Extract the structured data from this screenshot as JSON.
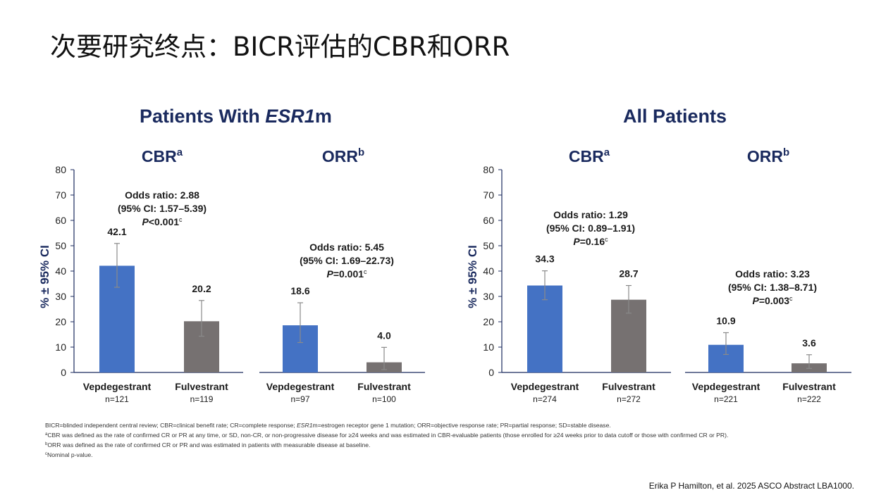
{
  "slide": {
    "title": "次要研究终点：BICR评估的CBR和ORR",
    "citation": "Erika P Hamilton, et al. 2025 ASCO Abstract LBA1000."
  },
  "groups": [
    {
      "title_prefix": "Patients With ",
      "title_italic": "ESR1",
      "title_suffix": "m"
    },
    {
      "title_prefix": "All Patients",
      "title_italic": "",
      "title_suffix": ""
    }
  ],
  "colors": {
    "vepdegestrant": "#4472c4",
    "fulvestrant": "#767171",
    "title": "#1a2a5e",
    "axis": "#1a2a5e"
  },
  "chart_data": [
    {
      "type": "bar",
      "group": "Patients With ESR1m",
      "title": "CBR",
      "title_sup": "a",
      "ylabel": "% ± 95% CI",
      "ylim": [
        0,
        80
      ],
      "yticks": [
        0,
        10,
        20,
        30,
        40,
        50,
        60,
        70,
        80
      ],
      "categories": [
        "Vepdegestrant",
        "Fulvestrant"
      ],
      "sample_sizes": [
        "n=121",
        "n=119"
      ],
      "values": [
        42.1,
        20.2
      ],
      "value_labels": [
        "42.1",
        "20.2"
      ],
      "ci_lower": [
        33.6,
        14.3
      ],
      "ci_upper": [
        50.9,
        28.4
      ],
      "annotation": {
        "line1": "Odds ratio: 2.88",
        "line2": "(95% CI: 1.57–5.39)",
        "p_prefix": "P",
        "p_value": "<0.001",
        "p_sup": "c"
      }
    },
    {
      "type": "bar",
      "group": "Patients With ESR1m",
      "title": "ORR",
      "title_sup": "b",
      "ylim": [
        0,
        80
      ],
      "categories": [
        "Vepdegestrant",
        "Fulvestrant"
      ],
      "sample_sizes": [
        "n=97",
        "n=100"
      ],
      "values": [
        18.6,
        4.0
      ],
      "value_labels": [
        "18.6",
        "4.0"
      ],
      "ci_lower": [
        11.8,
        1.1
      ],
      "ci_upper": [
        27.5,
        9.9
      ],
      "annotation": {
        "line1": "Odds ratio: 5.45",
        "line2": "(95% CI: 1.69–22.73)",
        "p_prefix": "P",
        "p_value": "=0.001",
        "p_sup": "c"
      }
    },
    {
      "type": "bar",
      "group": "All Patients",
      "title": "CBR",
      "title_sup": "a",
      "ylabel": "% ± 95% CI",
      "ylim": [
        0,
        80
      ],
      "yticks": [
        0,
        10,
        20,
        30,
        40,
        50,
        60,
        70,
        80
      ],
      "categories": [
        "Vepdegestrant",
        "Fulvestrant"
      ],
      "sample_sizes": [
        "n=274",
        "n=272"
      ],
      "values": [
        34.3,
        28.7
      ],
      "value_labels": [
        "34.3",
        "28.7"
      ],
      "ci_lower": [
        28.7,
        23.4
      ],
      "ci_upper": [
        40.1,
        34.3
      ],
      "annotation": {
        "line1": "Odds ratio: 1.29",
        "line2": "(95% CI: 0.89–1.91)",
        "p_prefix": "P",
        "p_value": "=0.16",
        "p_sup": "c"
      }
    },
    {
      "type": "bar",
      "group": "All Patients",
      "title": "ORR",
      "title_sup": "b",
      "ylim": [
        0,
        80
      ],
      "categories": [
        "Vepdegestrant",
        "Fulvestrant"
      ],
      "sample_sizes": [
        "n=221",
        "n=222"
      ],
      "values": [
        10.9,
        3.6
      ],
      "value_labels": [
        "10.9",
        "3.6"
      ],
      "ci_lower": [
        7.1,
        1.6
      ],
      "ci_upper": [
        15.7,
        7.0
      ],
      "annotation": {
        "line1": "Odds ratio: 3.23",
        "line2": "(95% CI: 1.38–8.71)",
        "p_prefix": "P",
        "p_value": "=0.003",
        "p_sup": "c"
      }
    }
  ],
  "footnotes": {
    "line1_a": "BICR=blinded independent central review; CBR=clinical benefit rate; CR=complete response; ",
    "line1_italic": "ESR1",
    "line1_b": "m=estrogen receptor gene 1 mutation; ORR=objective response rate; PR=partial response; SD=stable disease.",
    "a_sup": "a",
    "a_text": "CBR was defined as the rate of confirmed CR or PR at any time, or SD, non-CR, or non-progressive disease for ≥24 weeks and was estimated in CBR-evaluable patients (those enrolled for ≥24 weeks prior to data cutoff or those with confirmed CR or PR).",
    "b_sup": "b",
    "b_text": "ORR was defined as the rate of confirmed CR or PR and was estimated in patients with measurable disease at baseline.",
    "c_sup": "c",
    "c_text": "Nominal p-value."
  }
}
